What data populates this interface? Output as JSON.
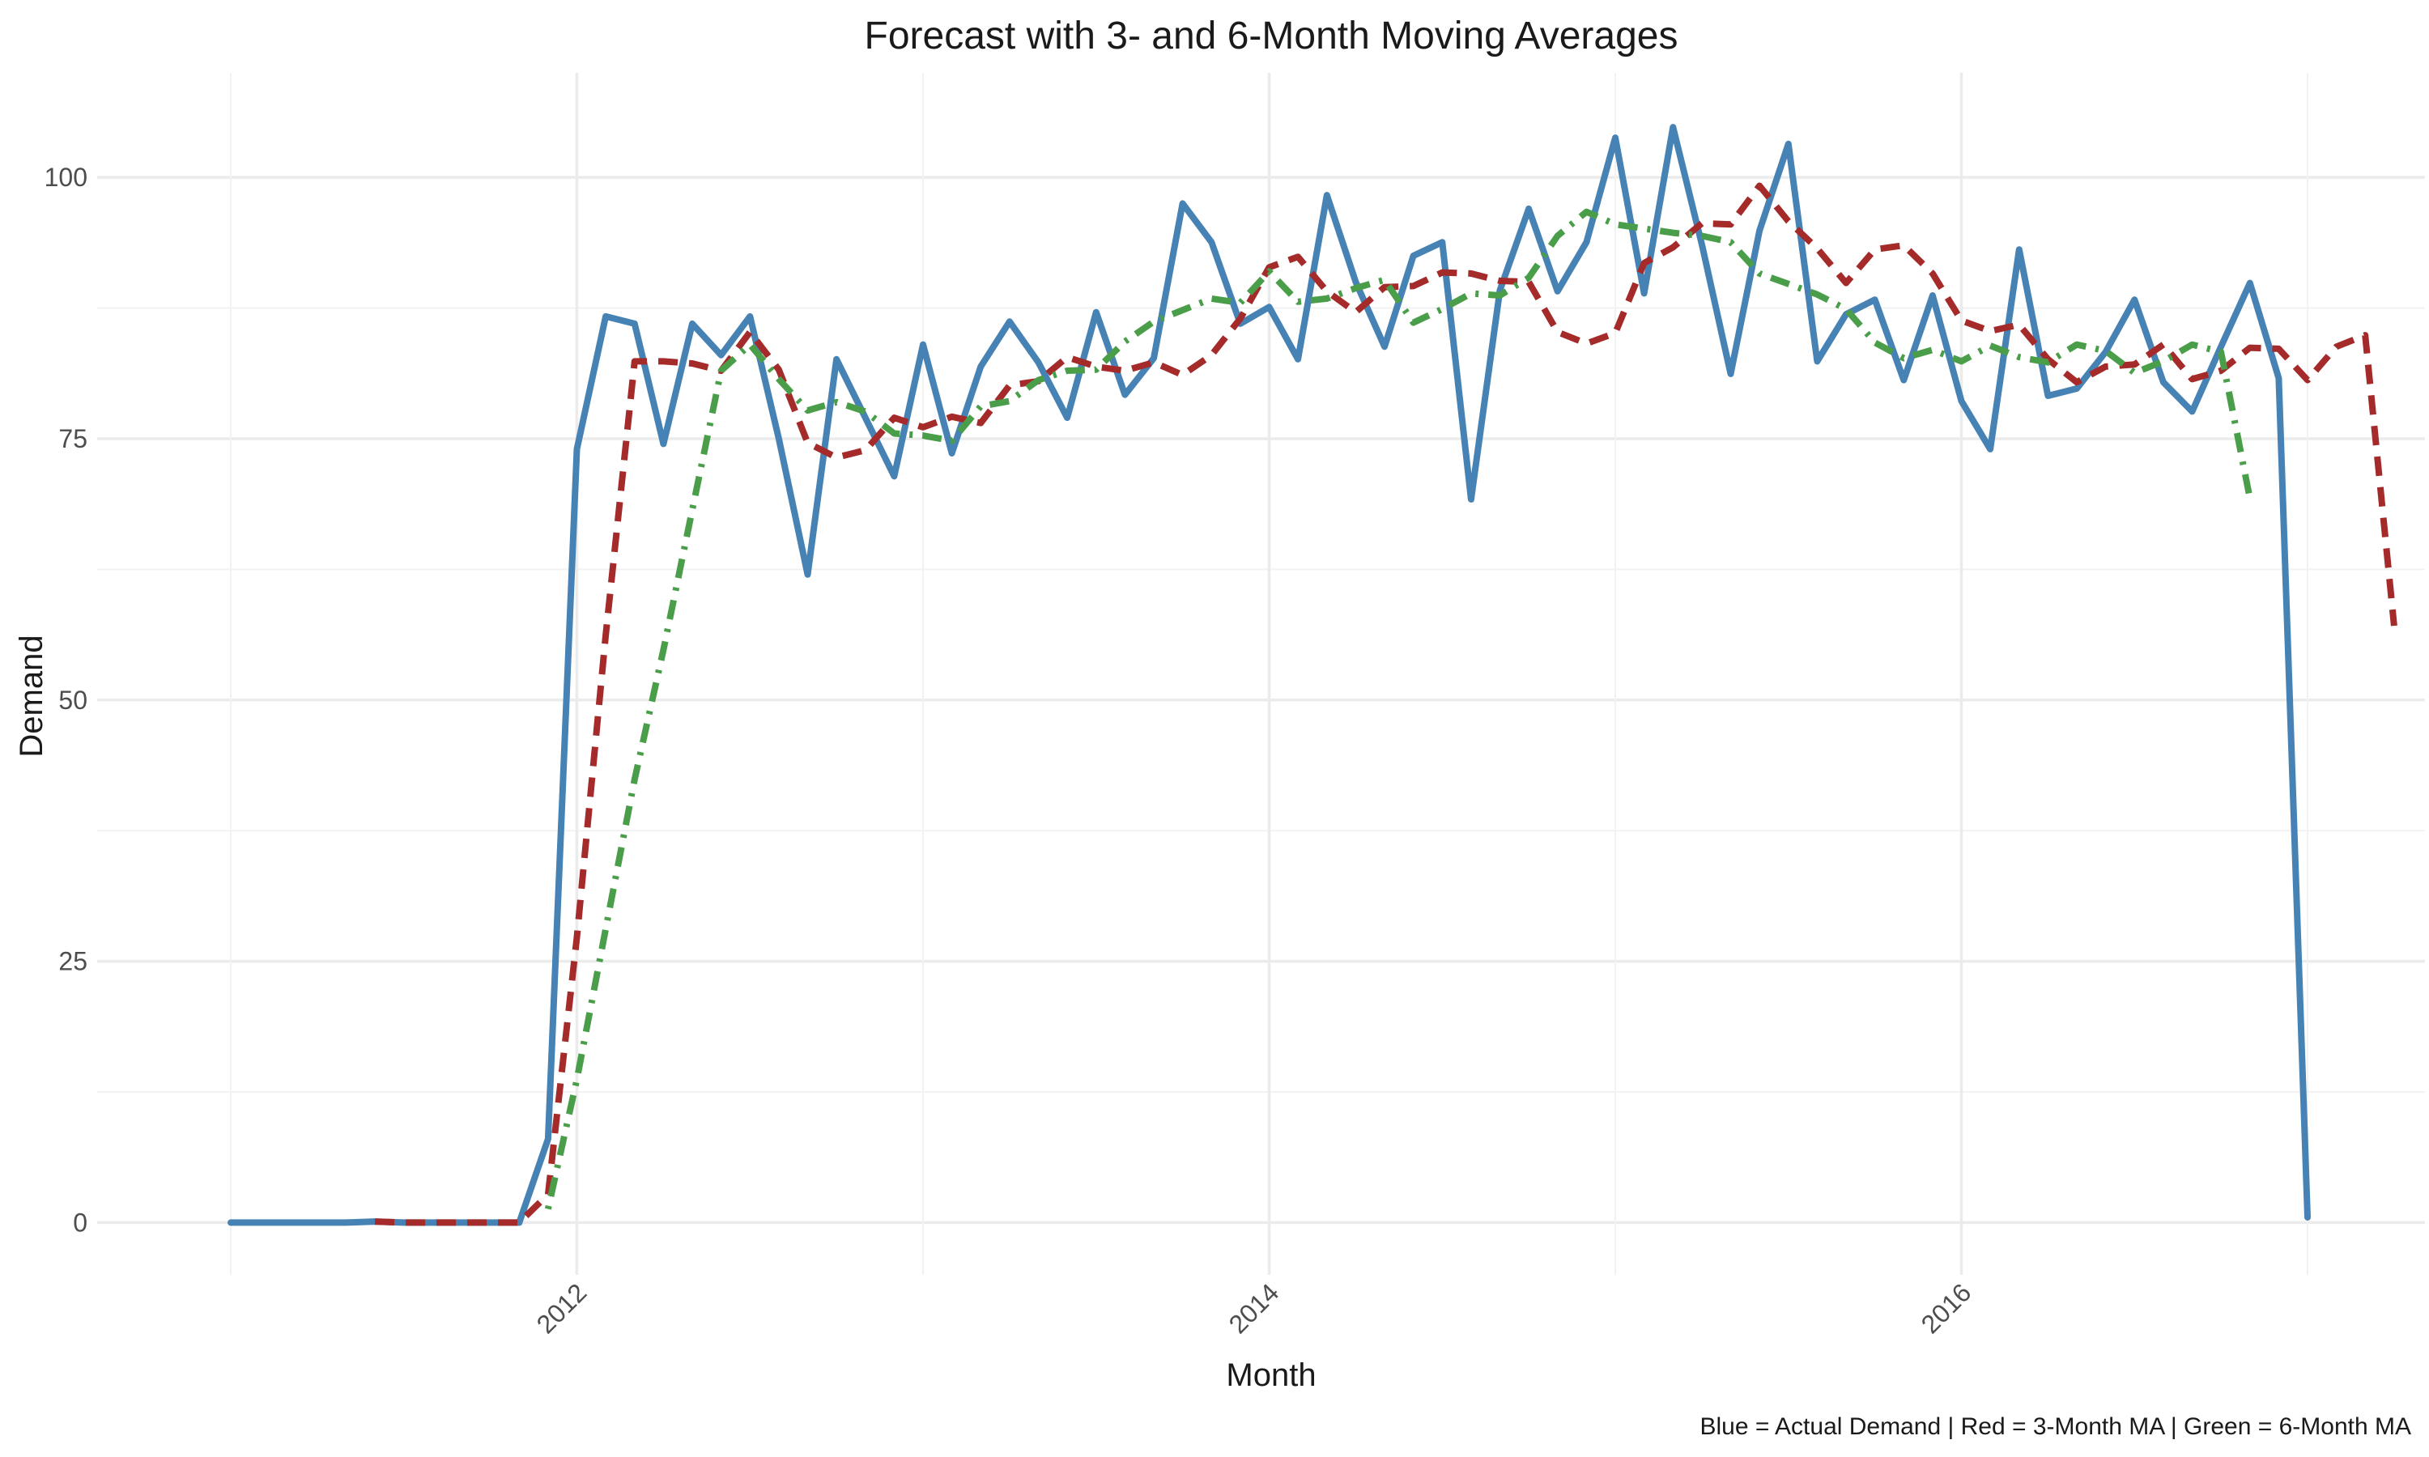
{
  "chart_data": {
    "type": "line",
    "title": "Forecast with 3- and 6-Month Moving Averages",
    "xlabel": "Month",
    "ylabel": "Demand",
    "caption": "Blue = Actual Demand | Red = 3-Month MA | Green = 6-Month MA",
    "x_start": "2011-01",
    "x_end": "2017-01",
    "xlim": [
      "2011-01",
      "2017-01"
    ],
    "ylim": [
      -5,
      110
    ],
    "x_ticks": [
      {
        "date": "2012-01",
        "label": "2012"
      },
      {
        "date": "2014-01",
        "label": "2014"
      },
      {
        "date": "2016-01",
        "label": "2016"
      }
    ],
    "y_ticks": [
      0,
      25,
      50,
      75,
      100
    ],
    "grid": true,
    "legend": "none",
    "series": [
      {
        "name": "Actual Demand",
        "color": "#4682B4",
        "dash": "solid",
        "offset_months": 0,
        "values": [
          0,
          0,
          0,
          0,
          0,
          0.1,
          0,
          0,
          0,
          0,
          0,
          8,
          74,
          86.7,
          86,
          74.5,
          86,
          83,
          86.7,
          75,
          62,
          82.6,
          77,
          71.4,
          84,
          73.6,
          81.9,
          86.2,
          82.3,
          77,
          87.1,
          79.2,
          82.7,
          97.5,
          93.8,
          86,
          87.6,
          82.6,
          98.3,
          90,
          83.8,
          92.5,
          93.8,
          69.2,
          89.2,
          97,
          89.1,
          93.8,
          103.8,
          88.9,
          104.8,
          93.6,
          81.2,
          94.9,
          103.2,
          82.4,
          86.9,
          88.3,
          80.6,
          88.7,
          78.6,
          74,
          93.1,
          79.1,
          79.8,
          83.3,
          88.3,
          80.4,
          77.6,
          83.8,
          89.9,
          80.8,
          0.5
        ]
      },
      {
        "name": "3-Month MA",
        "color": "#A52A2A",
        "dash": "dashed",
        "offset_months": 5,
        "values": [
          0.1,
          0,
          0,
          0,
          0,
          0,
          2.7,
          27.3,
          56.2,
          82.4,
          82.4,
          82.2,
          81.5,
          85.2,
          81.6,
          74.6,
          73.2,
          73.9,
          77,
          76.1,
          77.1,
          76.5,
          80.1,
          80.5,
          82.8,
          81.9,
          81.5,
          82.3,
          81.1,
          83,
          86.5,
          91.4,
          92.4,
          89.1,
          87.1,
          89.5,
          89.6,
          90.9,
          90.8,
          90.1,
          90,
          85.2,
          84.1,
          85.1,
          91.8,
          93.3,
          95.6,
          95.5,
          99.2,
          95.8,
          93.2,
          89.9,
          93.1,
          93.5,
          90.8,
          86.3,
          85.3,
          85.9,
          82.6,
          80.4,
          81.9,
          82.1,
          84,
          80.7,
          81.5,
          83.7,
          83.6,
          80.6,
          83.8,
          84.9,
          57.1
        ]
      },
      {
        "name": "6-Month MA",
        "color": "#4A9E4A",
        "dash": "dotdash",
        "offset_months": 11,
        "values": [
          1.3,
          13.7,
          28.1,
          42.4,
          54.8,
          68.2,
          81.5,
          84,
          80.7,
          77.7,
          78.5,
          77.6,
          75.5,
          75.3,
          74.8,
          78.1,
          78.6,
          80.6,
          81.5,
          81.6,
          84.3,
          86.2,
          87.3,
          88.4,
          88,
          91,
          88.1,
          88.4,
          89.4,
          90.2,
          86.1,
          87.4,
          88.9,
          88.7,
          90.4,
          94.4,
          96.7,
          95.5,
          95.1,
          94.7,
          94.4,
          93.8,
          90.8,
          89.8,
          88.8,
          87.4,
          84.2,
          82.7,
          83.5,
          82.4,
          83.9,
          82.8,
          82.3,
          84,
          83.4,
          81.3,
          82.4,
          84,
          83.3,
          69.3
        ]
      }
    ]
  }
}
